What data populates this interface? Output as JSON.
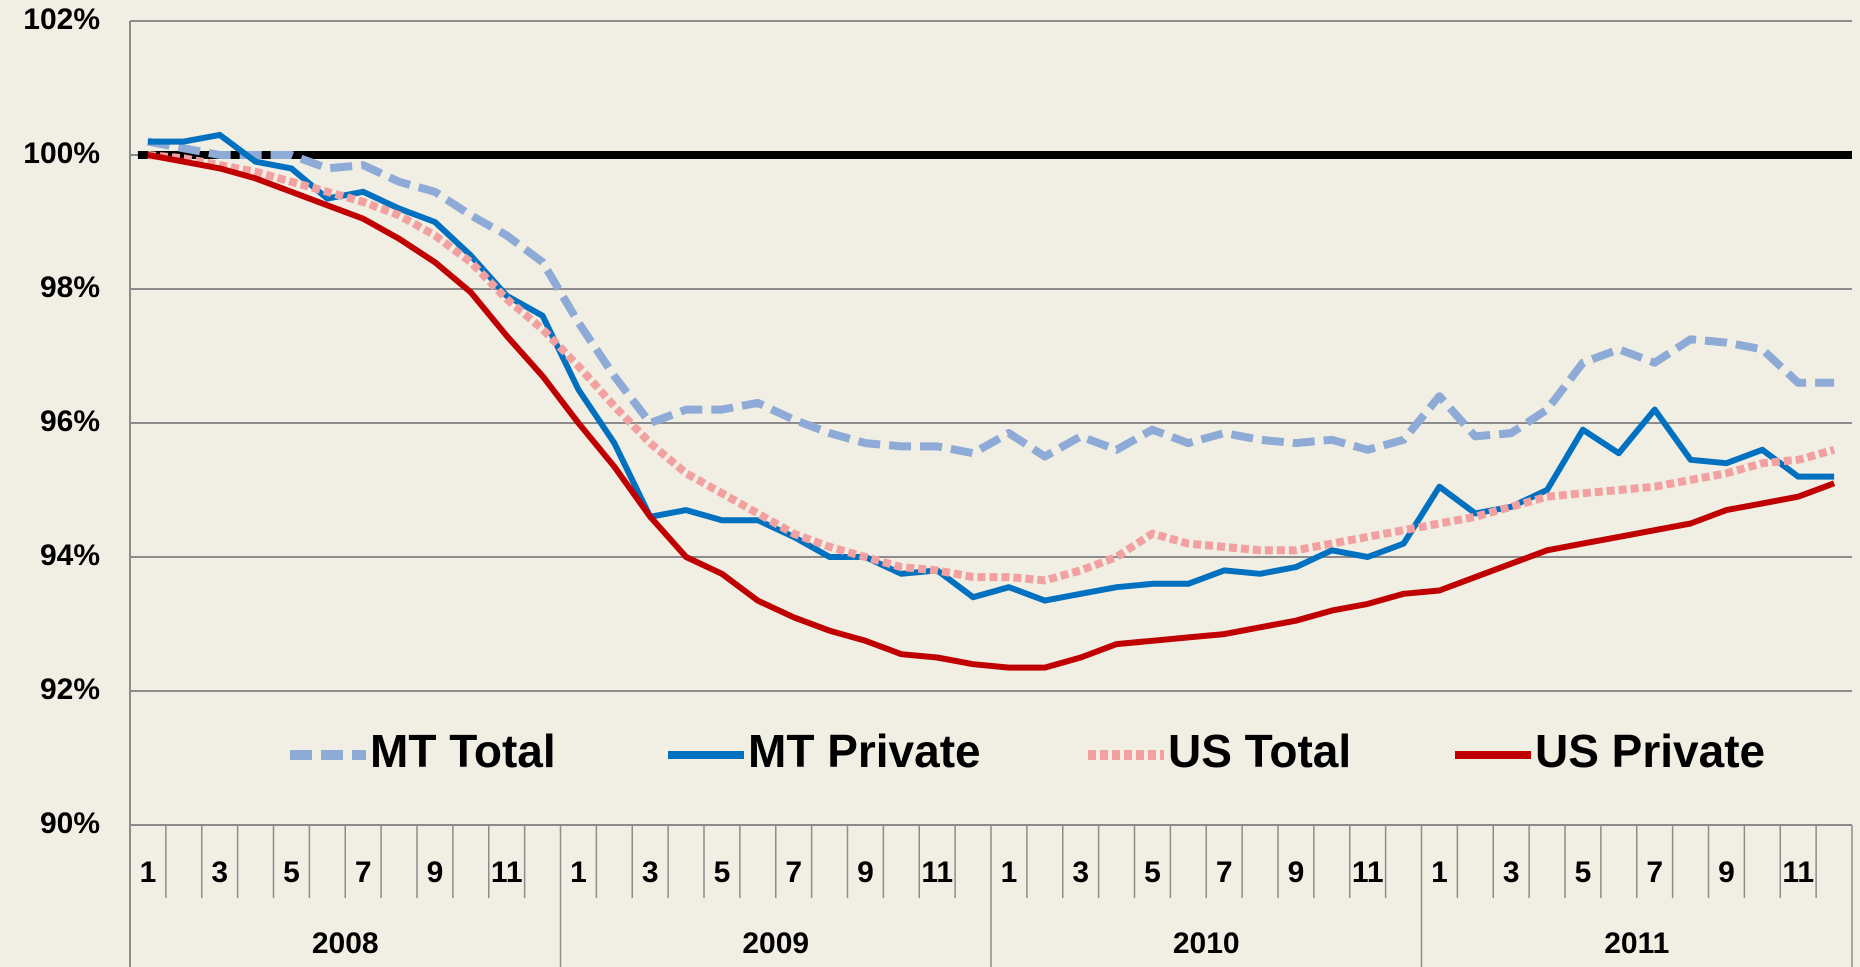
{
  "chart_data": {
    "type": "line",
    "categories": [
      "1",
      null,
      "3",
      null,
      "5",
      null,
      "7",
      null,
      "9",
      null,
      "11",
      null,
      "1",
      null,
      "3",
      null,
      "5",
      null,
      "7",
      null,
      "9",
      null,
      "11",
      null,
      "1",
      null,
      "3",
      null,
      "5",
      null,
      "7",
      null,
      "9",
      null,
      "11",
      null,
      "1",
      null,
      "3",
      null,
      "5",
      null,
      "7",
      null,
      "9",
      null,
      "11",
      null
    ],
    "groups": [
      "2008",
      "2009",
      "2010",
      "2011"
    ],
    "ylim": [
      90,
      102
    ],
    "yticks": [
      {
        "value": 90,
        "label": "90%"
      },
      {
        "value": 92,
        "label": "92%"
      },
      {
        "value": 94,
        "label": "94%"
      },
      {
        "value": 96,
        "label": "96%"
      },
      {
        "value": 98,
        "label": "98%"
      },
      {
        "value": 100,
        "label": "100%"
      },
      {
        "value": 102,
        "label": "102%"
      }
    ],
    "grid": true,
    "reference_line": 100,
    "series": [
      {
        "name": "MT Total",
        "color": "#8eaad6",
        "style": "dashed",
        "values": [
          100.2,
          100.1,
          100.0,
          100.0,
          100.0,
          99.8,
          99.85,
          99.6,
          99.45,
          99.1,
          98.8,
          98.4,
          97.5,
          96.7,
          96.0,
          96.2,
          96.2,
          96.3,
          96.05,
          95.85,
          95.7,
          95.65,
          95.65,
          95.55,
          95.85,
          95.5,
          95.8,
          95.6,
          95.9,
          95.7,
          95.85,
          95.75,
          95.7,
          95.75,
          95.6,
          95.75,
          96.4,
          95.8,
          95.85,
          96.2,
          96.9,
          97.1,
          96.9,
          97.25,
          97.2,
          97.1,
          96.6,
          96.6
        ]
      },
      {
        "name": "MT Private",
        "color": "#0070c0",
        "style": "solid",
        "values": [
          100.2,
          100.2,
          100.3,
          99.9,
          99.8,
          99.35,
          99.45,
          99.2,
          99.0,
          98.5,
          97.9,
          97.6,
          96.5,
          95.7,
          94.6,
          94.7,
          94.55,
          94.55,
          94.3,
          94.0,
          94.0,
          93.75,
          93.8,
          93.4,
          93.55,
          93.35,
          93.45,
          93.55,
          93.6,
          93.6,
          93.8,
          93.75,
          93.85,
          94.1,
          94.0,
          94.2,
          95.05,
          94.65,
          94.75,
          95.0,
          95.9,
          95.55,
          96.2,
          95.45,
          95.4,
          95.6,
          95.2,
          95.2
        ]
      },
      {
        "name": "US Total",
        "color": "#f2a0a0",
        "style": "dotted",
        "values": [
          100.0,
          99.95,
          99.85,
          99.75,
          99.6,
          99.45,
          99.3,
          99.1,
          98.8,
          98.4,
          97.85,
          97.4,
          96.85,
          96.25,
          95.7,
          95.25,
          94.95,
          94.65,
          94.35,
          94.15,
          94.0,
          93.85,
          93.8,
          93.7,
          93.7,
          93.65,
          93.8,
          94.0,
          94.35,
          94.2,
          94.15,
          94.1,
          94.1,
          94.2,
          94.3,
          94.4,
          94.5,
          94.6,
          94.75,
          94.9,
          94.95,
          95.0,
          95.05,
          95.15,
          95.25,
          95.4,
          95.45,
          95.6
        ]
      },
      {
        "name": "US Private",
        "color": "#c00000",
        "style": "solid",
        "values": [
          100.0,
          99.9,
          99.8,
          99.65,
          99.45,
          99.25,
          99.05,
          98.75,
          98.4,
          97.95,
          97.3,
          96.7,
          96.0,
          95.35,
          94.6,
          94.0,
          93.75,
          93.35,
          93.1,
          92.9,
          92.75,
          92.55,
          92.5,
          92.4,
          92.35,
          92.35,
          92.5,
          92.7,
          92.75,
          92.8,
          92.85,
          92.95,
          93.05,
          93.2,
          93.3,
          93.45,
          93.5,
          93.7,
          93.9,
          94.1,
          94.2,
          94.3,
          94.4,
          94.5,
          94.7,
          94.8,
          94.9,
          95.1
        ]
      }
    ]
  }
}
